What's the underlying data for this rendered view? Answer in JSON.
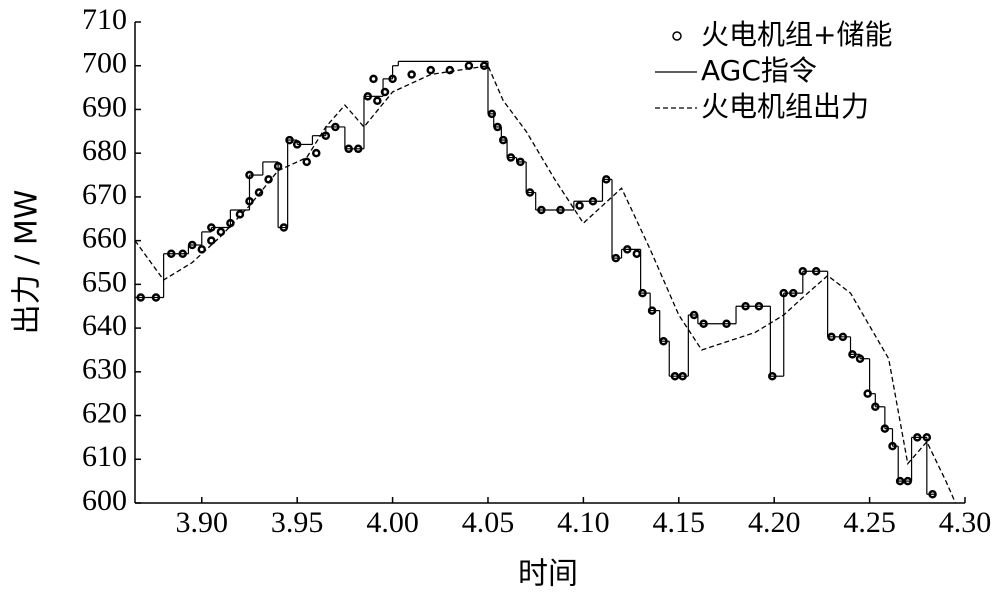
{
  "chart_data": {
    "type": "line",
    "ylabel": "出力 / MW",
    "xlabel": "时间",
    "xlim": [
      3.865,
      4.3
    ],
    "ylim": [
      600,
      710
    ],
    "xticks": [
      {
        "value": 3.9,
        "label": "3.90"
      },
      {
        "value": 3.95,
        "label": "3.95"
      },
      {
        "value": 4.0,
        "label": "4.00"
      },
      {
        "value": 4.05,
        "label": "4.05"
      },
      {
        "value": 4.1,
        "label": "4.10"
      },
      {
        "value": 4.15,
        "label": "4.15"
      },
      {
        "value": 4.2,
        "label": "4.20"
      },
      {
        "value": 4.25,
        "label": "4.25"
      },
      {
        "value": 4.3,
        "label": "4.30"
      }
    ],
    "yticks": [
      600,
      610,
      620,
      630,
      640,
      650,
      660,
      670,
      680,
      690,
      700,
      710
    ],
    "legend": "upper right",
    "series": [
      {
        "name": "火电机组+储能",
        "style": "markers",
        "color": "#000000",
        "x": [
          3.868,
          3.876,
          3.884,
          3.89,
          3.895,
          3.9,
          3.905,
          3.905,
          3.91,
          3.915,
          3.92,
          3.925,
          3.925,
          3.93,
          3.935,
          3.94,
          3.943,
          3.946,
          3.95,
          3.955,
          3.96,
          3.965,
          3.97,
          3.977,
          3.982,
          3.987,
          3.99,
          3.992,
          3.996,
          4.0,
          4.01,
          4.02,
          4.03,
          4.04,
          4.048,
          4.052,
          4.055,
          4.058,
          4.062,
          4.067,
          4.072,
          4.078,
          4.088,
          4.098,
          4.105,
          4.112,
          4.117,
          4.123,
          4.128,
          4.131,
          4.136,
          4.142,
          4.148,
          4.152,
          4.158,
          4.163,
          4.175,
          4.185,
          4.192,
          4.199,
          4.205,
          4.21,
          4.215,
          4.222,
          4.23,
          4.236,
          4.241,
          4.245,
          4.249,
          4.253,
          4.258,
          4.262,
          4.266,
          4.27,
          4.275,
          4.28,
          4.283
        ],
        "values": [
          647,
          647,
          657,
          657,
          659,
          658,
          663,
          660,
          662,
          664,
          666,
          675,
          669,
          671,
          674,
          677,
          663,
          683,
          682,
          678,
          680,
          684,
          686,
          681,
          681,
          693,
          697,
          692,
          694,
          697,
          698,
          699,
          699,
          700,
          700,
          689,
          686,
          683,
          679,
          678,
          671,
          667,
          667,
          668,
          669,
          674,
          656,
          658,
          657,
          648,
          644,
          637,
          629,
          629,
          643,
          641,
          641,
          645,
          645,
          629,
          648,
          648,
          653,
          653,
          638,
          638,
          634,
          633,
          625,
          622,
          617,
          613,
          605,
          605,
          615,
          615,
          602
        ]
      },
      {
        "name": "AGC指令",
        "style": "step",
        "color": "#000000",
        "x": [
          3.865,
          3.88,
          3.893,
          3.9,
          3.905,
          3.915,
          3.925,
          3.932,
          3.94,
          3.945,
          3.95,
          3.958,
          3.965,
          3.975,
          3.985,
          3.99,
          3.995,
          4.0,
          4.003,
          4.05,
          4.053,
          4.057,
          4.06,
          4.065,
          4.07,
          4.075,
          4.095,
          4.11,
          4.115,
          4.12,
          4.13,
          4.135,
          4.14,
          4.145,
          4.155,
          4.16,
          4.18,
          4.198,
          4.205,
          4.215,
          4.228,
          4.24,
          4.245,
          4.25,
          4.253,
          4.258,
          4.262,
          4.265,
          4.272,
          4.28,
          4.285
        ],
        "values": [
          647,
          657,
          659,
          662,
          663,
          667,
          675,
          678,
          663,
          683,
          682,
          684,
          686,
          681,
          693,
          693,
          697,
          700,
          701,
          689,
          686,
          683,
          679,
          678,
          671,
          667,
          669,
          674,
          656,
          658,
          648,
          644,
          637,
          629,
          643,
          641,
          645,
          629,
          648,
          653,
          638,
          634,
          633,
          625,
          622,
          617,
          613,
          605,
          615,
          602,
          602
        ]
      },
      {
        "name": "火电机组出力",
        "style": "dashed",
        "color": "#000000",
        "x": [
          3.865,
          3.88,
          3.895,
          3.91,
          3.925,
          3.94,
          3.945,
          3.955,
          3.965,
          3.975,
          3.985,
          4.0,
          4.02,
          4.05,
          4.058,
          4.07,
          4.085,
          4.1,
          4.12,
          4.135,
          4.15,
          4.162,
          4.19,
          4.205,
          4.215,
          4.228,
          4.24,
          4.26,
          4.27,
          4.28,
          4.29,
          4.295
        ],
        "values": [
          660,
          651,
          655,
          661,
          668,
          676,
          677,
          679,
          686,
          691,
          686,
          694,
          698,
          700,
          692,
          685,
          674,
          664,
          672,
          658,
          643,
          635,
          639,
          643,
          647,
          652,
          648,
          633,
          609,
          614,
          605,
          600
        ]
      }
    ]
  }
}
